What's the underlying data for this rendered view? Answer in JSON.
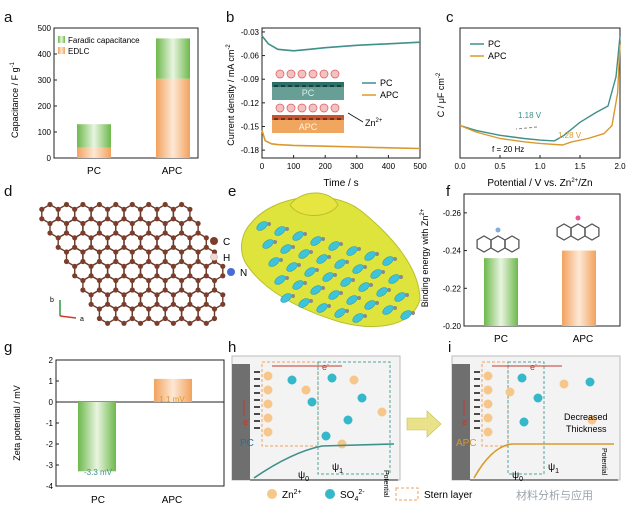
{
  "panels": {
    "a": {
      "label": "a",
      "ylabel": "Capacitance / F g",
      "ylabel_sup": "-1",
      "legend": [
        "Faradic capacitance",
        "EDLC"
      ],
      "categories": [
        "PC",
        "APC"
      ],
      "yticks": [
        "500",
        "400",
        "300",
        "200",
        "100",
        "0"
      ]
    },
    "b": {
      "label": "b",
      "ylabel": "Current density / mA cm",
      "ylabel_sup": "-2",
      "xlabel": "Time / s",
      "yticks": [
        "-0.03",
        "-0.06",
        "-0.09",
        "-0.12",
        "-0.15",
        "-0.18"
      ],
      "xticks": [
        "0",
        "100",
        "200",
        "300",
        "400",
        "500"
      ],
      "legend": [
        "PC",
        "APC"
      ],
      "inset_top": "PC",
      "inset_bottom": "APC",
      "zn": "Zn",
      "zn_sup": "2+"
    },
    "c": {
      "label": "c",
      "ylabel": "C / μF cm",
      "ylabel_sup": "-2",
      "xlabel": "Potential / V vs. Zn",
      "xlabel_sup": "2+",
      "xlabel_tail": "/Zn",
      "legend": [
        "PC",
        "APC"
      ],
      "anno1": "1.18 V",
      "anno2": "1.28 V",
      "freq": "f = 20 Hz",
      "xticks": [
        "0.0",
        "0.5",
        "1.0",
        "1.5",
        "2.0"
      ]
    },
    "d": {
      "label": "d",
      "legend": [
        "C",
        "H",
        "N"
      ],
      "axis_b": "b",
      "axis_a": "a"
    },
    "e": {
      "label": "e"
    },
    "f": {
      "label": "f",
      "ylabel": "Binding energy with Zn",
      "ylabel_sup": "2+",
      "categories": [
        "PC",
        "APC"
      ],
      "yticks": [
        "-0.26",
        "-0.24",
        "-0.22",
        "-0.20"
      ]
    },
    "g": {
      "label": "g",
      "ylabel": "Zeta potential / mV",
      "categories": [
        "PC",
        "APC"
      ],
      "pc_value": "-3.3 mV",
      "apc_value": "1.1 mV",
      "yticks": [
        "2",
        "1",
        "0",
        "-1",
        "-2",
        "-3",
        "-4"
      ]
    },
    "h": {
      "label": "h",
      "electron": "e",
      "electron_sup": "-",
      "material": "PC",
      "psi0": "ψ",
      "psi0_sub": "0",
      "psi1": "ψ",
      "psi1_sub": "1",
      "axis": "Potential"
    },
    "i": {
      "label": "i",
      "electron": "e",
      "electron_sup": "-",
      "material": "APC",
      "psi0": "ψ",
      "psi0_sub": "0",
      "psi1": "ψ",
      "psi1_sub": "1",
      "axis": "Potential",
      "note1": "Decreased",
      "note2": "Thickness"
    },
    "legend_bottom": {
      "zn": "Zn",
      "zn_sup": "2+",
      "so4": "SO",
      "so4_sub": "4",
      "so4_sup": "2-",
      "stern": "Stern layer",
      "watermark": "材料分析与应用"
    }
  },
  "chart_data": [
    {
      "type": "bar",
      "title": "",
      "categories": [
        "PC",
        "APC"
      ],
      "series": [
        {
          "name": "EDLC",
          "values": [
            40,
            305
          ]
        },
        {
          "name": "Faradic capacitance",
          "values": [
            90,
            155
          ]
        }
      ],
      "ylabel": "Capacitance / F g-1",
      "ylim": [
        0,
        500
      ]
    },
    {
      "type": "line",
      "xlabel": "Time / s",
      "ylabel": "Current density / mA cm-2",
      "xlim": [
        0,
        500
      ],
      "ylim": [
        -0.19,
        -0.025
      ],
      "series": [
        {
          "name": "PC",
          "x": [
            0,
            20,
            50,
            100,
            150,
            200,
            300,
            400,
            500
          ],
          "y": [
            -0.035,
            -0.045,
            -0.052,
            -0.054,
            -0.052,
            -0.05,
            -0.047,
            -0.045,
            -0.043
          ]
        },
        {
          "name": "APC",
          "x": [
            0,
            10,
            30,
            50,
            100,
            200,
            300,
            400,
            500
          ],
          "y": [
            -0.155,
            -0.168,
            -0.172,
            -0.173,
            -0.174,
            -0.175,
            -0.176,
            -0.177,
            -0.178
          ]
        }
      ]
    },
    {
      "type": "line",
      "xlabel": "Potential / V vs. Zn2+/Zn",
      "ylabel": "C / μF cm-2",
      "xlim": [
        0,
        2.0
      ],
      "series": [
        {
          "name": "PC",
          "x": [
            0,
            0.2,
            0.5,
            0.8,
            1.0,
            1.18,
            1.3,
            1.5,
            1.7,
            1.85,
            1.95,
            2.0
          ],
          "y": [
            20,
            17,
            14,
            12,
            11,
            10.5,
            14,
            22,
            28,
            32,
            50,
            75
          ]
        },
        {
          "name": "APC",
          "x": [
            0,
            0.2,
            0.5,
            0.8,
            1.0,
            1.28,
            1.4,
            1.6,
            1.8,
            1.9,
            1.97,
            2.0
          ],
          "y": [
            20,
            16,
            12,
            10,
            9,
            8,
            10,
            12,
            15,
            20,
            40,
            70
          ]
        }
      ]
    },
    {
      "type": "bar",
      "categories": [
        "PC",
        "APC"
      ],
      "values": [
        -0.236,
        -0.24
      ],
      "ylabel": "Binding energy with Zn2+",
      "ylim": [
        -0.27,
        -0.2
      ]
    },
    {
      "type": "bar",
      "categories": [
        "PC",
        "APC"
      ],
      "values": [
        -3.3,
        1.1
      ],
      "ylabel": "Zeta potential / mV",
      "ylim": [
        -4,
        2
      ]
    }
  ],
  "colors": {
    "green": "#5da845",
    "orange": "#f2a25d",
    "pc_line": "#3f8f8a",
    "apc_line": "#d99a2b",
    "cyan": "#38c1d6",
    "yellow": "#d8e13a",
    "brown": "#7b3e2d",
    "zn_dot": "#f7c68a",
    "so4_dot": "#35b8c9"
  }
}
